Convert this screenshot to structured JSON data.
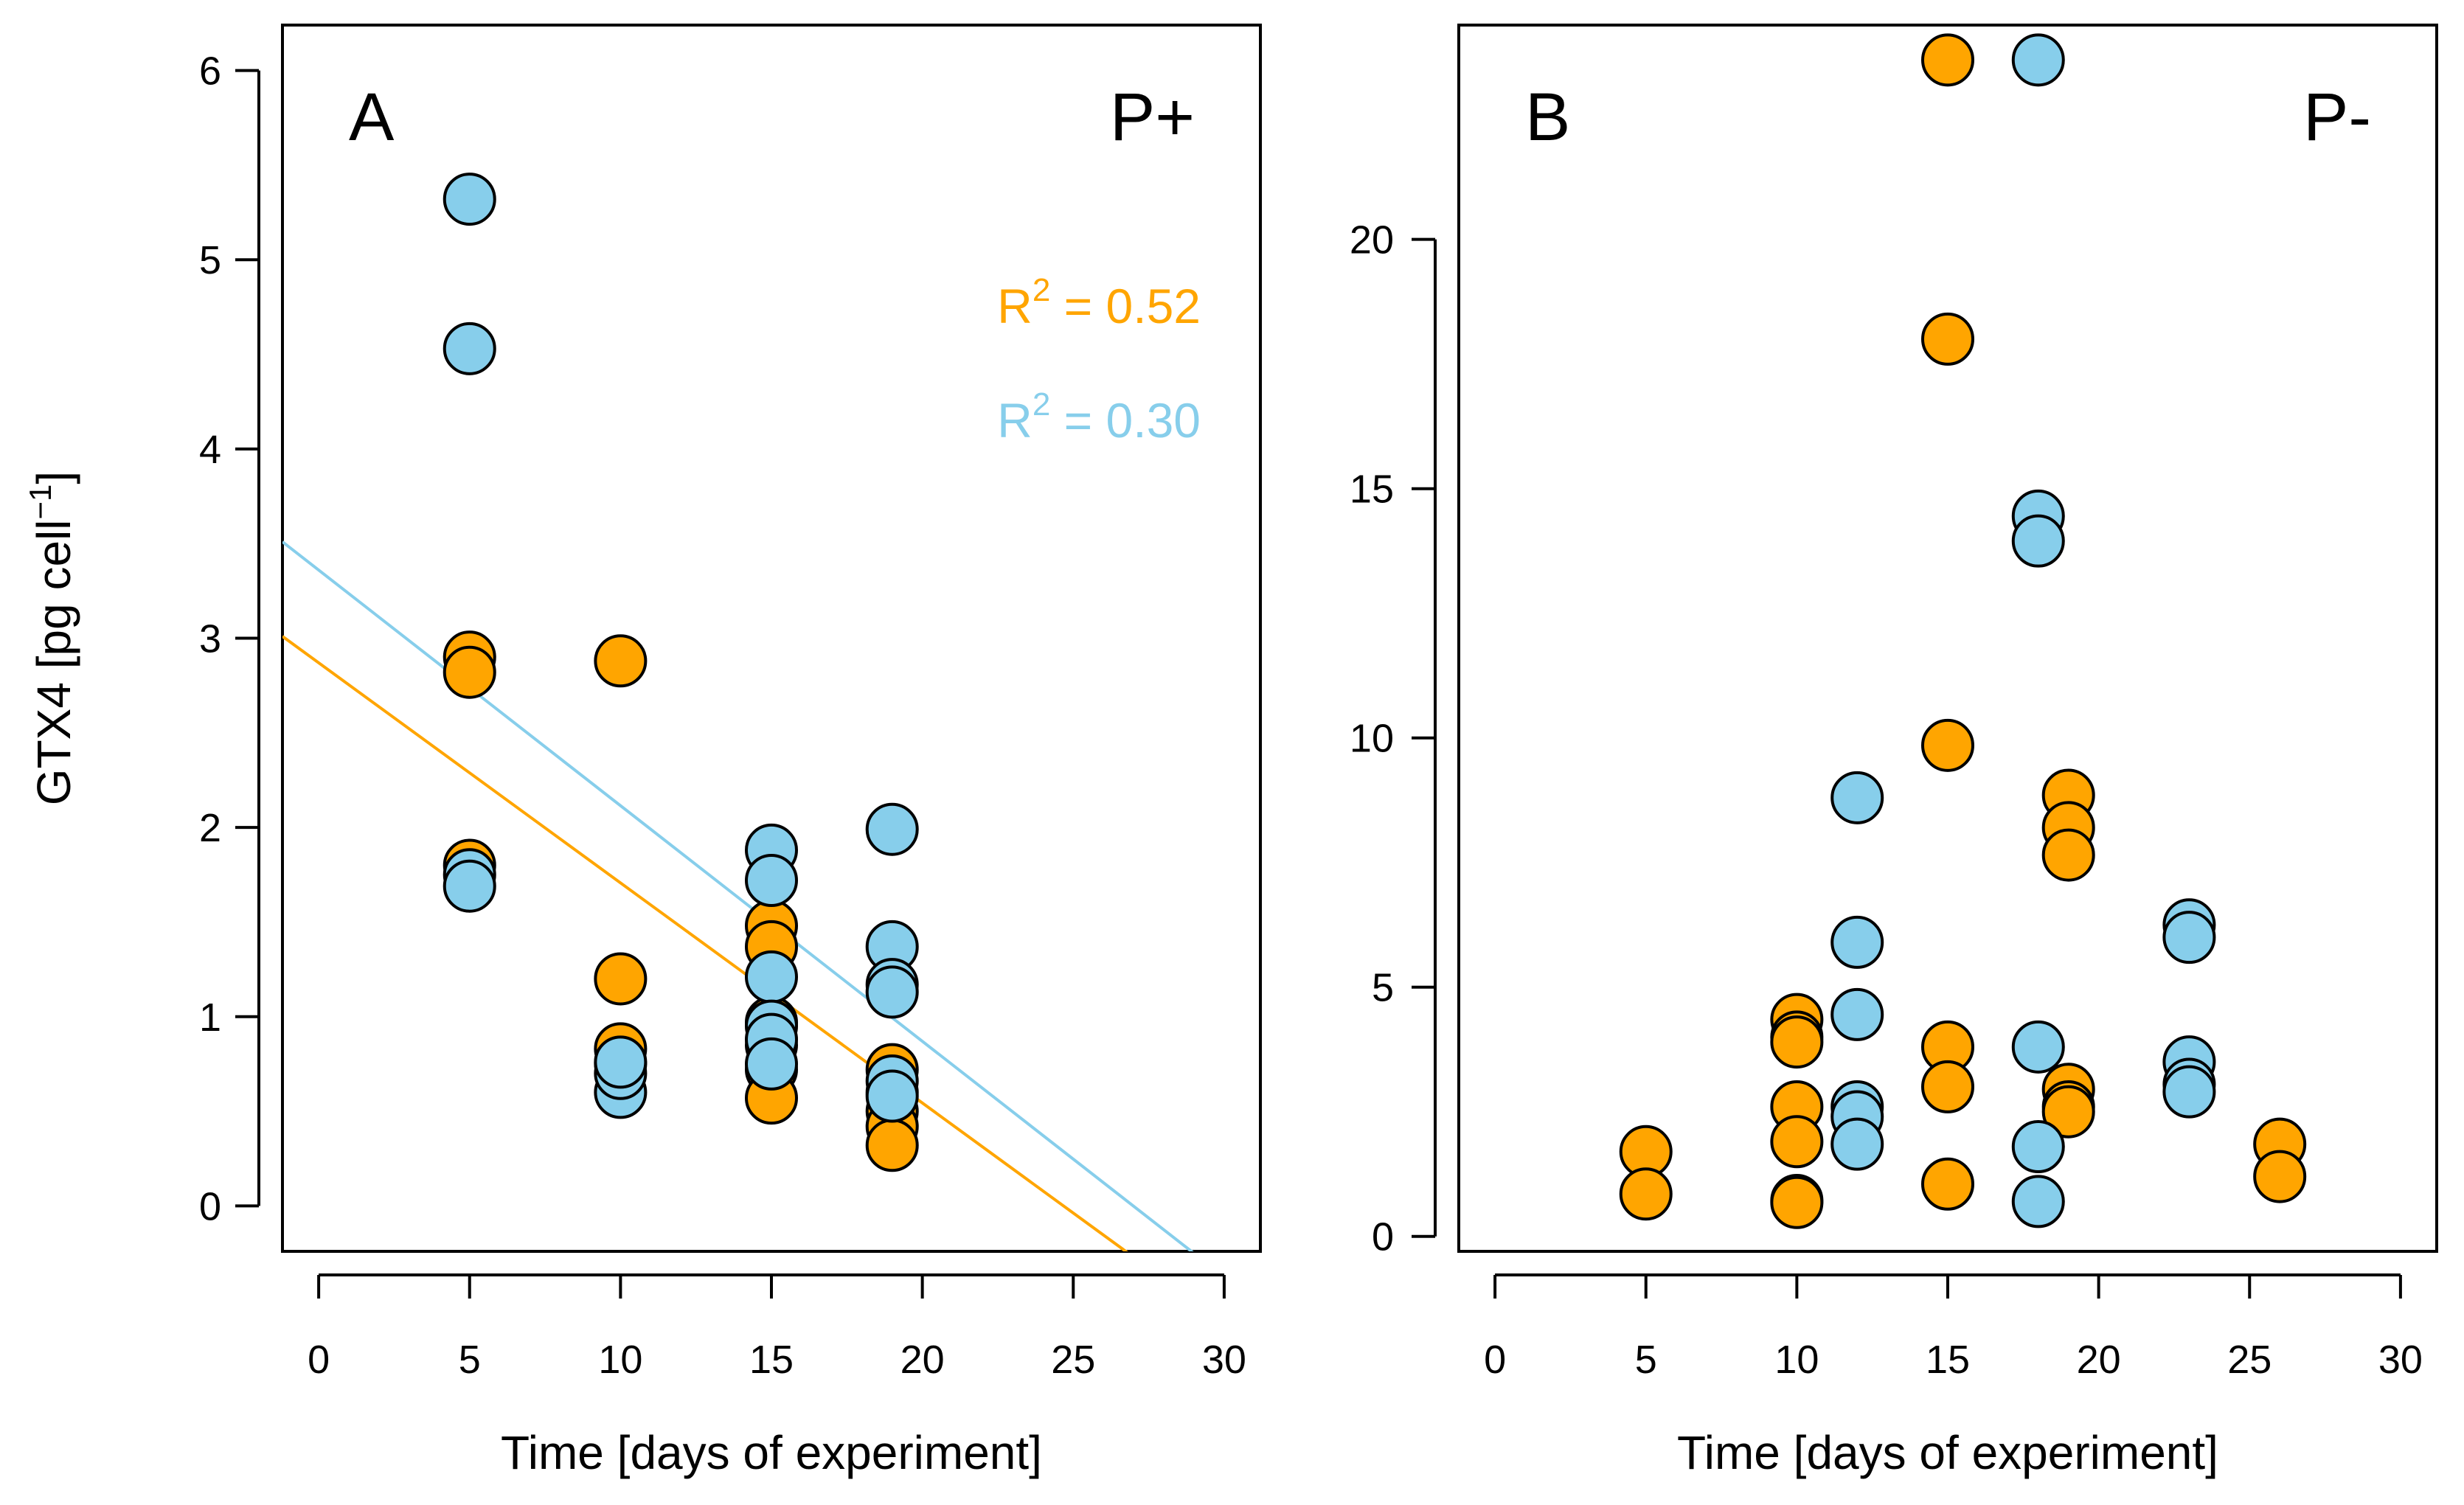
{
  "colors": {
    "orange": "#FFA500",
    "blue": "#87CEEB",
    "frame": "#000000",
    "marker_edge": "#000000"
  },
  "chart_data": [
    {
      "type": "scatter",
      "panel_letter": "A",
      "panel_tag": "P+",
      "xlabel": "Time [days of experiment]",
      "ylabel": "GTX4 [pg cell",
      "ylabel_exponent": "−1",
      "ylabel_close": "]",
      "xlim": [
        -1.2,
        31.2
      ],
      "ylim": [
        -0.24,
        6.24
      ],
      "xticks": [
        0,
        5,
        10,
        15,
        20,
        25,
        30
      ],
      "xtick_labels": [
        "0",
        "5",
        "10",
        "15",
        "20",
        "25",
        "30"
      ],
      "yticks": [
        0,
        1,
        2,
        3,
        4,
        5,
        6
      ],
      "ytick_labels": [
        "0",
        "1",
        "2",
        "3",
        "4",
        "5",
        "6"
      ],
      "series": [
        {
          "name": "orange",
          "color": "orange",
          "points": [
            {
              "x": 5,
              "y": 2.9
            },
            {
              "x": 5,
              "y": 2.82
            },
            {
              "x": 5,
              "y": 1.8
            },
            {
              "x": 10,
              "y": 2.88
            },
            {
              "x": 10,
              "y": 1.2
            },
            {
              "x": 10,
              "y": 0.83
            },
            {
              "x": 10,
              "y": 0.75
            },
            {
              "x": 15,
              "y": 1.48
            },
            {
              "x": 15,
              "y": 1.37
            },
            {
              "x": 15,
              "y": 0.97
            },
            {
              "x": 15,
              "y": 0.85
            },
            {
              "x": 15,
              "y": 0.72
            },
            {
              "x": 15,
              "y": 0.57
            },
            {
              "x": 19,
              "y": 0.72
            },
            {
              "x": 19,
              "y": 0.6
            },
            {
              "x": 19,
              "y": 0.5
            },
            {
              "x": 19,
              "y": 0.42
            },
            {
              "x": 19,
              "y": 0.32
            }
          ],
          "regression": {
            "intercept": 2.87,
            "slope": -0.1163,
            "r2": 0.52
          }
        },
        {
          "name": "blue",
          "color": "blue",
          "points": [
            {
              "x": 5,
              "y": 5.32
            },
            {
              "x": 5,
              "y": 4.53
            },
            {
              "x": 5,
              "y": 1.75
            },
            {
              "x": 5,
              "y": 1.69
            },
            {
              "x": 10,
              "y": 0.6
            },
            {
              "x": 10,
              "y": 0.7
            },
            {
              "x": 10,
              "y": 0.76
            },
            {
              "x": 15,
              "y": 1.88
            },
            {
              "x": 15,
              "y": 1.72
            },
            {
              "x": 15,
              "y": 1.21
            },
            {
              "x": 15,
              "y": 0.95
            },
            {
              "x": 15,
              "y": 0.88
            },
            {
              "x": 15,
              "y": 0.75
            },
            {
              "x": 19,
              "y": 1.99
            },
            {
              "x": 19,
              "y": 1.37
            },
            {
              "x": 19,
              "y": 1.17
            },
            {
              "x": 19,
              "y": 1.13
            },
            {
              "x": 19,
              "y": 0.66
            },
            {
              "x": 19,
              "y": 0.58
            }
          ],
          "regression": {
            "intercept": 3.36,
            "slope": -0.1245,
            "r2": 0.3
          }
        }
      ],
      "annotations": [
        {
          "color": "orange",
          "prefix": "R",
          "exponent": "2",
          "value": " = 0.52"
        },
        {
          "color": "blue",
          "prefix": "R",
          "exponent": "2",
          "value": " = 0.30"
        }
      ]
    },
    {
      "type": "scatter",
      "panel_letter": "B",
      "panel_tag": "P-",
      "xlabel": "Time [days of experiment]",
      "ylabel": "",
      "xlim": [
        -1.2,
        31.2
      ],
      "ylim": [
        -0.3,
        24.3
      ],
      "xticks": [
        0,
        5,
        10,
        15,
        20,
        25,
        30
      ],
      "xtick_labels": [
        "0",
        "5",
        "10",
        "15",
        "20",
        "25",
        "30"
      ],
      "yticks": [
        0,
        5,
        10,
        15,
        20
      ],
      "ytick_labels": [
        "0",
        "5",
        "10",
        "15",
        "20"
      ],
      "series": [
        {
          "name": "orange",
          "color": "orange",
          "points": [
            {
              "x": 5,
              "y": 1.7
            },
            {
              "x": 5,
              "y": 0.85
            },
            {
              "x": 10,
              "y": 4.35
            },
            {
              "x": 10,
              "y": 4.0
            },
            {
              "x": 10,
              "y": 3.9
            },
            {
              "x": 10,
              "y": 2.6
            },
            {
              "x": 10,
              "y": 1.9
            },
            {
              "x": 10,
              "y": 0.72
            },
            {
              "x": 10,
              "y": 0.68
            },
            {
              "x": 15,
              "y": 23.6
            },
            {
              "x": 15,
              "y": 18.0
            },
            {
              "x": 15,
              "y": 9.85
            },
            {
              "x": 15,
              "y": 3.8
            },
            {
              "x": 15,
              "y": 3.0
            },
            {
              "x": 15,
              "y": 1.05
            },
            {
              "x": 19,
              "y": 8.85
            },
            {
              "x": 19,
              "y": 8.2
            },
            {
              "x": 19,
              "y": 7.65
            },
            {
              "x": 19,
              "y": 2.95
            },
            {
              "x": 19,
              "y": 2.6
            },
            {
              "x": 19,
              "y": 2.5
            },
            {
              "x": 26,
              "y": 1.85
            },
            {
              "x": 26,
              "y": 1.2
            }
          ]
        },
        {
          "name": "blue",
          "color": "blue",
          "points": [
            {
              "x": 12,
              "y": 8.8
            },
            {
              "x": 12,
              "y": 5.9
            },
            {
              "x": 12,
              "y": 4.45
            },
            {
              "x": 12,
              "y": 2.6
            },
            {
              "x": 12,
              "y": 2.4
            },
            {
              "x": 12,
              "y": 1.85
            },
            {
              "x": 18,
              "y": 23.6
            },
            {
              "x": 18,
              "y": 14.45
            },
            {
              "x": 18,
              "y": 13.95
            },
            {
              "x": 18,
              "y": 3.8
            },
            {
              "x": 18,
              "y": 1.8
            },
            {
              "x": 18,
              "y": 0.7
            },
            {
              "x": 23,
              "y": 6.25
            },
            {
              "x": 23,
              "y": 6.0
            },
            {
              "x": 23,
              "y": 3.5
            },
            {
              "x": 23,
              "y": 3.05
            },
            {
              "x": 23,
              "y": 2.9
            }
          ]
        }
      ]
    }
  ]
}
